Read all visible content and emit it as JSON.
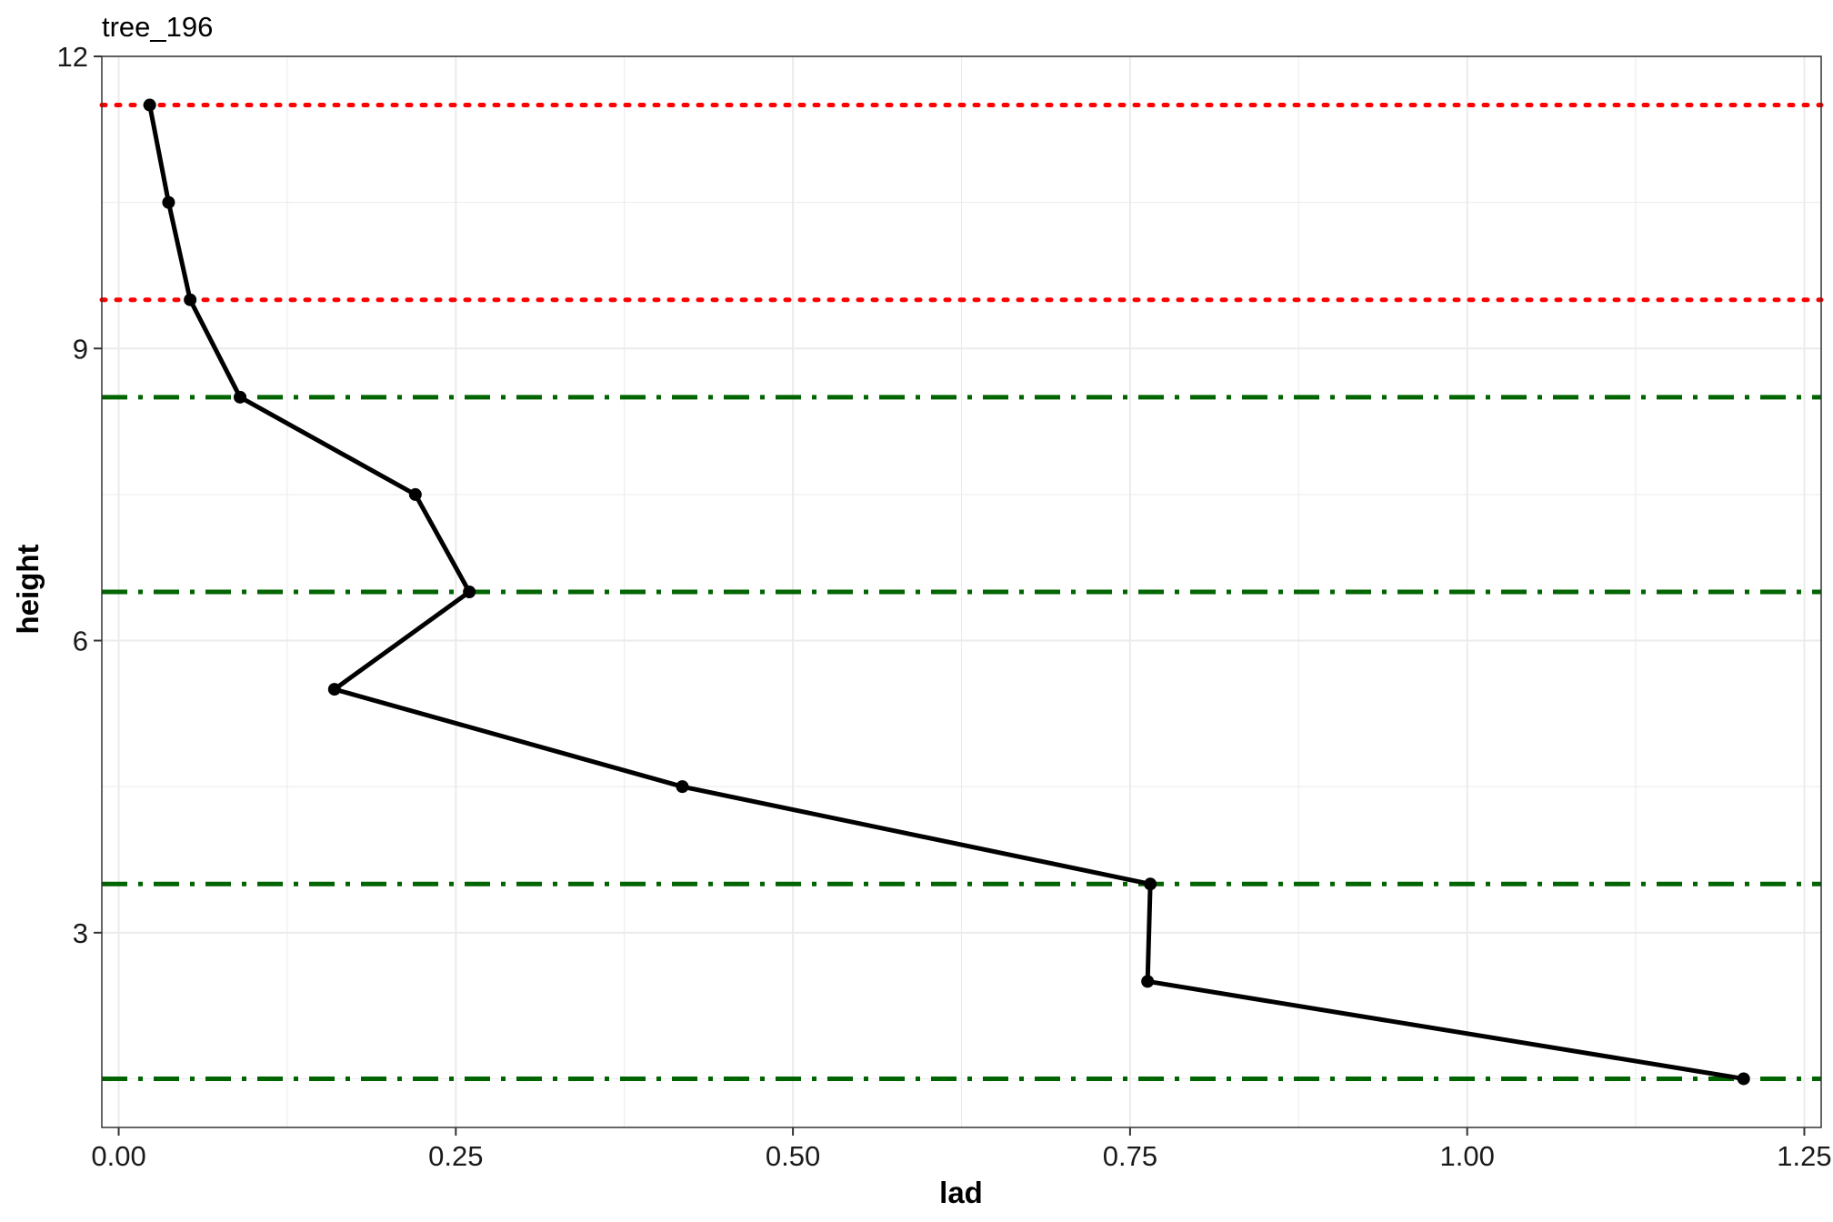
{
  "chart_data": {
    "type": "line",
    "title": "tree_196",
    "xlabel": "lad",
    "ylabel": "height",
    "xlim": [
      -0.0125,
      1.2625
    ],
    "ylim": [
      1,
      12
    ],
    "x_ticks": [
      0.0,
      0.25,
      0.5,
      0.75,
      1.0,
      1.25
    ],
    "x_tick_labels": [
      "0.00",
      "0.25",
      "0.50",
      "0.75",
      "1.00",
      "1.25"
    ],
    "y_ticks": [
      3,
      6,
      9,
      12
    ],
    "y_tick_labels": [
      "3",
      "6",
      "9",
      "12"
    ],
    "grid": true,
    "legend": "none",
    "series": [
      {
        "x": [
          1.205,
          0.763,
          0.765,
          0.418,
          0.16,
          0.26,
          0.22,
          0.09,
          0.053,
          0.037,
          0.023
        ],
        "y": [
          1.5,
          2.5,
          3.5,
          4.5,
          5.5,
          6.5,
          7.5,
          8.5,
          9.5,
          10.5,
          11.5
        ],
        "color": "#000000"
      }
    ],
    "reference_lines": [
      {
        "y": 11.5,
        "style": "dotted",
        "color": "#ff0000"
      },
      {
        "y": 9.5,
        "style": "dotted",
        "color": "#ff0000"
      },
      {
        "y": 8.5,
        "style": "dashdot",
        "color": "#006400"
      },
      {
        "y": 6.5,
        "style": "dashdot",
        "color": "#006400"
      },
      {
        "y": 3.5,
        "style": "dashdot",
        "color": "#006400"
      },
      {
        "y": 1.5,
        "style": "dashdot",
        "color": "#006400"
      }
    ],
    "colors": {
      "line": "#000000",
      "dotted": "#ff0000",
      "dashdot": "#006400",
      "grid": "#ebebeb",
      "panel_border": "#333333"
    }
  }
}
